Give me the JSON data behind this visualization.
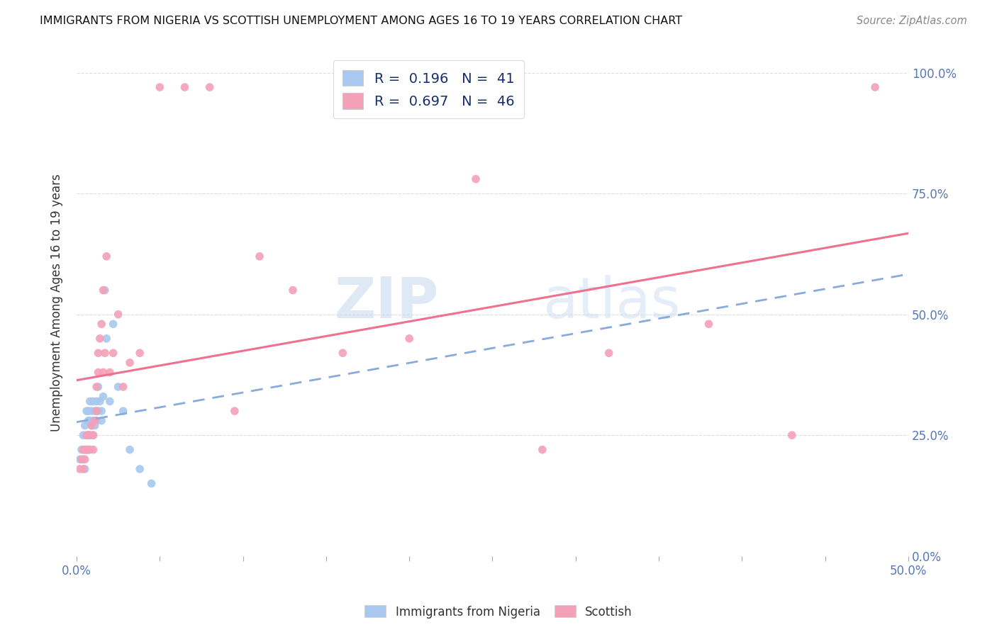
{
  "title": "IMMIGRANTS FROM NIGERIA VS SCOTTISH UNEMPLOYMENT AMONG AGES 16 TO 19 YEARS CORRELATION CHART",
  "source": "Source: ZipAtlas.com",
  "ylabel": "Unemployment Among Ages 16 to 19 years",
  "legend_entries": [
    {
      "label_r": "R =  0.196",
      "label_n": "N =  41",
      "color": "#a8c8f0"
    },
    {
      "label_r": "R =  0.697",
      "label_n": "N =  46",
      "color": "#f4a0b8"
    }
  ],
  "legend_bottom": [
    "Immigrants from Nigeria",
    "Scottish"
  ],
  "blue_color": "#a8c8f0",
  "pink_color": "#f4a0b8",
  "blue_line_color": "#88aadd",
  "pink_line_color": "#f07090",
  "xlim": [
    0.0,
    0.5
  ],
  "ylim": [
    0.0,
    1.05
  ],
  "background_color": "#ffffff",
  "grid_color": "#dddddd",
  "blue_scatter_x": [
    0.002,
    0.003,
    0.004,
    0.004,
    0.005,
    0.005,
    0.005,
    0.006,
    0.006,
    0.006,
    0.007,
    0.007,
    0.007,
    0.007,
    0.008,
    0.008,
    0.008,
    0.009,
    0.009,
    0.01,
    0.01,
    0.01,
    0.011,
    0.011,
    0.012,
    0.012,
    0.013,
    0.013,
    0.014,
    0.015,
    0.015,
    0.016,
    0.017,
    0.018,
    0.02,
    0.022,
    0.025,
    0.028,
    0.032,
    0.038,
    0.045
  ],
  "blue_scatter_y": [
    0.2,
    0.22,
    0.25,
    0.2,
    0.27,
    0.22,
    0.18,
    0.3,
    0.25,
    0.22,
    0.3,
    0.28,
    0.25,
    0.22,
    0.32,
    0.28,
    0.25,
    0.3,
    0.27,
    0.32,
    0.28,
    0.25,
    0.3,
    0.27,
    0.32,
    0.28,
    0.35,
    0.3,
    0.32,
    0.3,
    0.28,
    0.33,
    0.55,
    0.45,
    0.32,
    0.48,
    0.35,
    0.3,
    0.22,
    0.18,
    0.15
  ],
  "pink_scatter_x": [
    0.002,
    0.003,
    0.004,
    0.004,
    0.005,
    0.005,
    0.006,
    0.006,
    0.007,
    0.007,
    0.008,
    0.008,
    0.009,
    0.01,
    0.01,
    0.011,
    0.012,
    0.012,
    0.013,
    0.013,
    0.014,
    0.015,
    0.016,
    0.016,
    0.017,
    0.018,
    0.02,
    0.022,
    0.025,
    0.028,
    0.032,
    0.038,
    0.05,
    0.065,
    0.08,
    0.095,
    0.11,
    0.13,
    0.16,
    0.2,
    0.24,
    0.28,
    0.32,
    0.38,
    0.43,
    0.48
  ],
  "pink_scatter_y": [
    0.18,
    0.2,
    0.22,
    0.18,
    0.22,
    0.2,
    0.25,
    0.22,
    0.25,
    0.22,
    0.25,
    0.22,
    0.27,
    0.25,
    0.22,
    0.28,
    0.35,
    0.3,
    0.42,
    0.38,
    0.45,
    0.48,
    0.55,
    0.38,
    0.42,
    0.62,
    0.38,
    0.42,
    0.5,
    0.35,
    0.4,
    0.42,
    0.97,
    0.97,
    0.97,
    0.3,
    0.62,
    0.55,
    0.42,
    0.45,
    0.78,
    0.22,
    0.42,
    0.48,
    0.25,
    0.97
  ]
}
